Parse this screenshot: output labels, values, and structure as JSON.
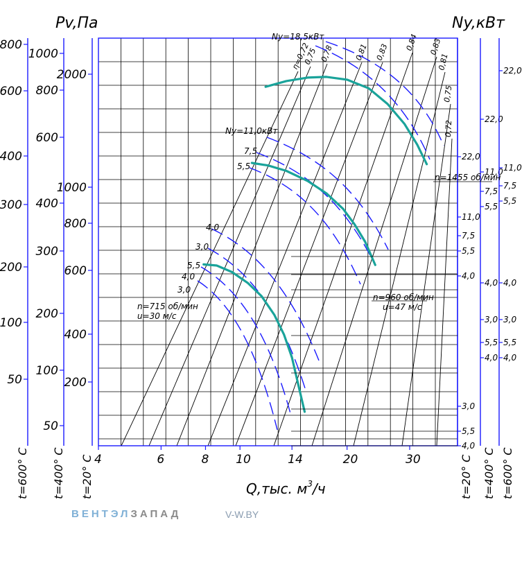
{
  "chart_data": {
    "type": "line",
    "title": "",
    "left_axis_label": "Pv,Па",
    "right_axis_label": "Ny,кВт",
    "x_axis": {
      "label": "Q,тыс. м³/ч",
      "label_main": "Q,тыс. м",
      "label_sup": "3",
      "label_tail": "/ч",
      "scale": "log",
      "ticks": [
        4,
        6,
        8,
        10,
        14,
        20,
        30
      ],
      "range": [
        4,
        36
      ]
    },
    "pressure_axes": [
      {
        "temp": "t=20° С",
        "ticks": [
          2000,
          1000,
          800,
          600,
          400,
          200
        ]
      },
      {
        "temp": "t=400° С",
        "ticks": [
          1000,
          800,
          600,
          400,
          300,
          200,
          100,
          50
        ]
      },
      {
        "temp": "t=600° С",
        "ticks": [
          800,
          600,
          400,
          300,
          200,
          100,
          50
        ]
      }
    ],
    "power_axes": [
      {
        "temp": "t=20° С",
        "ticks": [
          "22,0",
          "11,0",
          "7,5",
          "5,5",
          "4,0",
          "3,0",
          "5,5",
          "4,0"
        ]
      },
      {
        "temp": "t=400° С",
        "ticks": [
          "22,0",
          "11,0",
          "7,5",
          "5,5",
          "4,0",
          "3,0",
          "5,5",
          "4,0"
        ]
      },
      {
        "temp": "t=600° С",
        "ticks": [
          "22,0",
          "11,0",
          "7,5",
          "5,5",
          "4,0",
          "3,0",
          "5,5",
          "4,0"
        ]
      }
    ],
    "efficiency_labels": [
      "η=0,72",
      "0,75",
      "0,78",
      "0,81",
      "0,83",
      "0,84",
      "0,83",
      "0,81",
      "0,75",
      "0,72"
    ],
    "series": [
      {
        "name": "n=1455 об/мин",
        "x": [
          11.8,
          13.5,
          15.5,
          17.5,
          20,
          23,
          26,
          29,
          31.5,
          33.5
        ],
        "y": [
          1820,
          1900,
          1950,
          1960,
          1920,
          1800,
          1600,
          1380,
          1180,
          1020
        ]
      },
      {
        "name": "n=960 об/мин",
        "sub": "u=47 м/с",
        "x": [
          10.8,
          12,
          13.5,
          15.5,
          17.5,
          19.5,
          21,
          22.5,
          24
        ],
        "y": [
          1030,
          1010,
          970,
          900,
          820,
          730,
          650,
          570,
          480
        ]
      },
      {
        "name": "n=715 об/мин",
        "sub": "u=30 м/с",
        "x": [
          7.9,
          8.6,
          9.5,
          10.5,
          11.5,
          12.5,
          13.3,
          14,
          14.6,
          15.2
        ],
        "y": [
          482,
          478,
          455,
          420,
          380,
          330,
          285,
          240,
          195,
          160
        ]
      }
    ],
    "power_curve_labels": [
      {
        "text": "Ny=18,5кВт"
      },
      {
        "text": "Ny=11,0кВт"
      },
      {
        "text": "7,5"
      },
      {
        "text": "5,5"
      },
      {
        "text": "4,0"
      },
      {
        "text": "3,0"
      },
      {
        "text": "5,5"
      },
      {
        "text": "4,0"
      },
      {
        "text": "3,0"
      }
    ],
    "right_scale_labels": [
      "22,0",
      "22,0",
      "22,0",
      "11,0",
      "7,5",
      "5,5",
      "11,0",
      "7,5",
      "5,5",
      "4,0",
      "11,0",
      "7,5",
      "5,5",
      "4,0",
      "3,0",
      "5,5",
      "4,0",
      "4,0",
      "3,0",
      "5,5",
      "4,0",
      "3,0",
      "5,5",
      "4,0"
    ],
    "grid": true,
    "colors": {
      "fan_curve": "#1aa39a",
      "power_curve": "#1a1aff",
      "axis": "#1a1aff",
      "grid": "#000000"
    }
  },
  "watermark": {
    "brand_a": "ВЕНТЭЛ",
    "brand_b": "ЗАПАД",
    "url": "V-W.BY"
  }
}
